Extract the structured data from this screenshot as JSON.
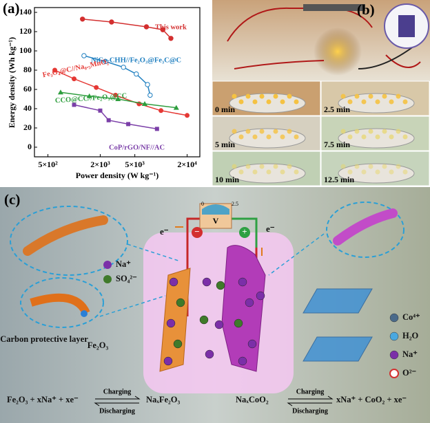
{
  "chart_data": {
    "type": "line",
    "panel_label": "(a)",
    "x_label": "Power density (W kg⁻¹)",
    "y_label": "Energy density (Wh kg⁻¹)",
    "log_x": true,
    "xlim": [
      350,
      28000
    ],
    "ylim": [
      -10,
      145
    ],
    "xticks": [
      {
        "value": 500,
        "label": "5×10²"
      },
      {
        "value": 2000,
        "label": "2×10³"
      },
      {
        "value": 5000,
        "label": "5×10³"
      },
      {
        "value": 20000,
        "label": "2×10⁴"
      }
    ],
    "yticks": [
      0,
      20,
      40,
      60,
      80,
      100,
      120,
      140
    ],
    "series": [
      {
        "name": "This work",
        "color": "#d32f2f",
        "x": [
          1250,
          2700,
          6800,
          10500,
          13000
        ],
        "values": [
          133,
          130,
          125,
          122,
          113
        ]
      },
      {
        "name": "NiCo-CHH//Fe₂O₃@Fe₃C@C",
        "color": "#1f7fc0",
        "x": [
          1300,
          2300,
          3700,
          5200,
          7000,
          7500
        ],
        "values": [
          95,
          89,
          83,
          76,
          65,
          54
        ]
      },
      {
        "name": "Fe₃O₄@C//Na₀.₅MnO₂",
        "color": "#e53935",
        "x": [
          600,
          1000,
          1800,
          3000,
          5600,
          10000,
          20000
        ],
        "values": [
          80,
          71,
          62,
          54,
          45,
          38,
          33
        ]
      },
      {
        "name": "CCO@CC//Fe₂O₃@CC",
        "color": "#2e9e3e",
        "x": [
          700,
          1500,
          3200,
          6500,
          15000
        ],
        "values": [
          57,
          53,
          50,
          45,
          41
        ]
      },
      {
        "name": "CoP/rGO/NF//AC",
        "color": "#7b3fa8",
        "x": [
          1000,
          2000,
          2500,
          4200,
          9000
        ],
        "values": [
          44,
          38,
          28,
          24,
          19
        ]
      }
    ]
  },
  "panel_b": {
    "label": "(b)",
    "frames": [
      "0 min",
      "2.5 min",
      "5 min",
      "7.5 min",
      "10 min",
      "12.5 min"
    ]
  },
  "panel_c": {
    "label": "(c)",
    "voltmeter": {
      "symbol": "V",
      "min": "0",
      "max": "2.5"
    },
    "electron_left": "e⁻",
    "electron_right": "e⁻",
    "negative": "−",
    "positive": "+",
    "ions": [
      "Na⁺",
      "SO₄²⁻"
    ],
    "carbon_layer": "Carbon protective layer",
    "core": "Fe₂O₃",
    "crystal_legend": [
      "Co⁴⁺",
      "H₂O",
      "Na⁺",
      "O²⁻"
    ],
    "left_equation": {
      "reactant": "Fe₂O₃ + xNa⁺ + xe⁻",
      "charging": "Charging",
      "discharging": "Discharging",
      "product": "NaₓFe₂O₃"
    },
    "right_equation": {
      "reactant": "NaₓCoO₂",
      "charging": "Charging",
      "discharging": "Discharging",
      "product": "xNa⁺ + CoO₂ + xe⁻"
    }
  }
}
